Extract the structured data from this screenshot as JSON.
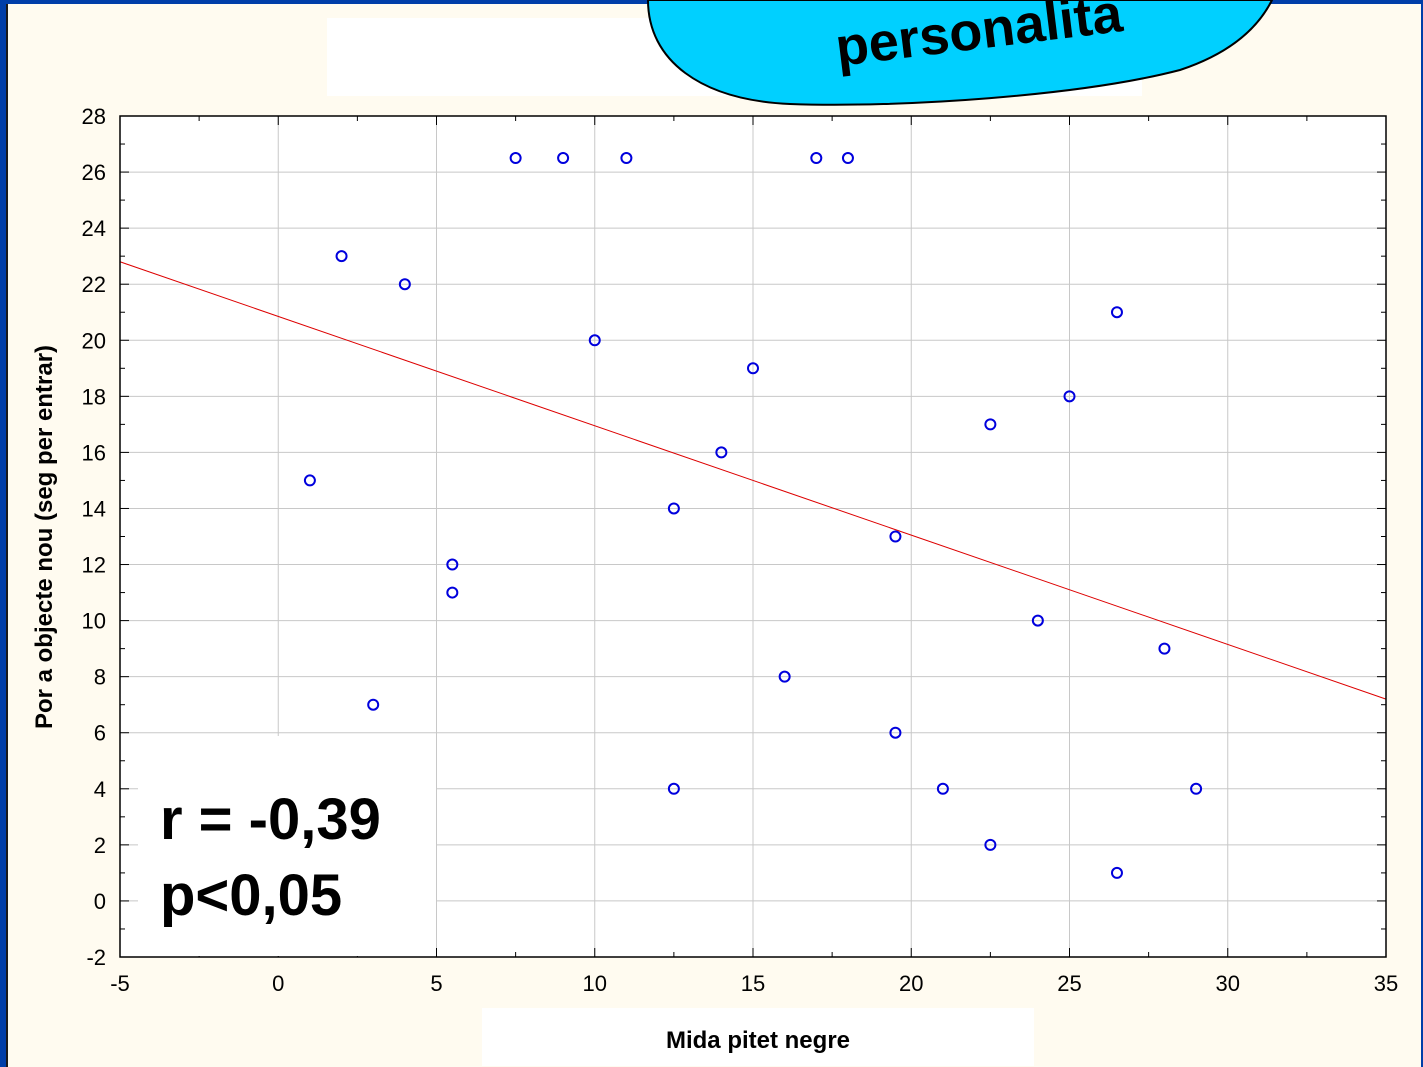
{
  "bubble": {
    "text": "personalita"
  },
  "stats": {
    "r_text": "r = -0,39",
    "p_text": "p<0,05"
  },
  "chart_data": {
    "type": "scatter",
    "title": "",
    "xlabel": "Mida pitet negre",
    "ylabel": "Por a objecte nou (seg per entrar)",
    "xlim": [
      -5,
      35
    ],
    "ylim": [
      -2,
      28
    ],
    "xticks": [
      -5,
      0,
      5,
      10,
      15,
      20,
      25,
      30,
      35
    ],
    "yticks": [
      -2,
      0,
      2,
      4,
      6,
      8,
      10,
      12,
      14,
      16,
      18,
      20,
      22,
      24,
      26,
      28
    ],
    "grid": true,
    "points": [
      {
        "x": 1,
        "y": 15
      },
      {
        "x": 2,
        "y": 23
      },
      {
        "x": 3,
        "y": 7
      },
      {
        "x": 4,
        "y": 22
      },
      {
        "x": 5.5,
        "y": 12
      },
      {
        "x": 5.5,
        "y": 11
      },
      {
        "x": 7.5,
        "y": 26.5
      },
      {
        "x": 9,
        "y": 26.5
      },
      {
        "x": 10,
        "y": 20
      },
      {
        "x": 11,
        "y": 26.5
      },
      {
        "x": 12.5,
        "y": 14
      },
      {
        "x": 12.5,
        "y": 4
      },
      {
        "x": 14,
        "y": 16
      },
      {
        "x": 15,
        "y": 19
      },
      {
        "x": 16,
        "y": 8
      },
      {
        "x": 17,
        "y": 26.5
      },
      {
        "x": 18,
        "y": 26.5
      },
      {
        "x": 19.5,
        "y": 13
      },
      {
        "x": 19.5,
        "y": 6
      },
      {
        "x": 21,
        "y": 4
      },
      {
        "x": 22.5,
        "y": 17
      },
      {
        "x": 22.5,
        "y": 2
      },
      {
        "x": 24,
        "y": 10
      },
      {
        "x": 25,
        "y": 18
      },
      {
        "x": 26.5,
        "y": 21
      },
      {
        "x": 26.5,
        "y": 1
      },
      {
        "x": 28,
        "y": 9
      },
      {
        "x": 29,
        "y": 4
      }
    ],
    "regression_line": {
      "x": [
        -5,
        35
      ],
      "y": [
        22.8,
        7.2
      ]
    },
    "colors": {
      "points": "#0000dd",
      "regression": "#dd0000",
      "grid": "#c8c8c8"
    }
  }
}
